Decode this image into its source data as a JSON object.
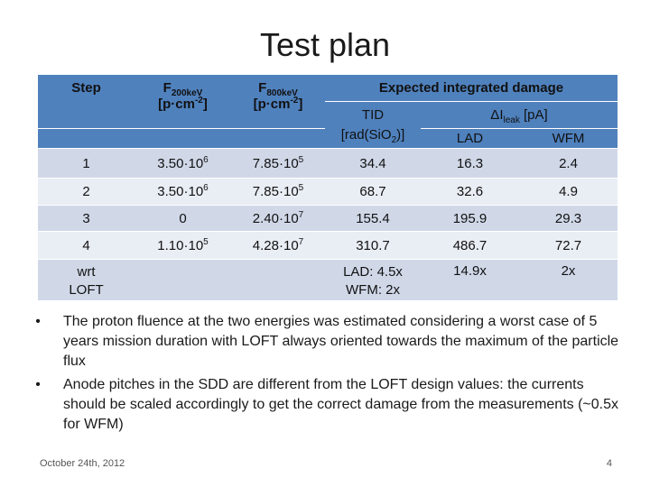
{
  "slide": {
    "title": "Test plan",
    "footer_date": "October 24th, 2012",
    "page_number": "4"
  },
  "table": {
    "headers": {
      "step": "Step",
      "f200_main": "F",
      "f200_sub": "200keV",
      "f200_unit_pre": "[p·cm",
      "f200_unit_sup": "-2",
      "f200_unit_post": "]",
      "f800_main": "F",
      "f800_sub": "800keV",
      "f800_unit_pre": "[p·cm",
      "f800_unit_sup": "-2",
      "f800_unit_post": "]",
      "expected": "Expected integrated damage",
      "tid_line1": "TID",
      "tid_line2_pre": "[rad(SiO",
      "tid_line2_sub": "2",
      "tid_line2_post": ")]",
      "ileak_pre": "ΔI",
      "ileak_sub": "leak",
      "ileak_post": " [pA]",
      "lad": "LAD",
      "wfm": "WFM"
    },
    "rows": [
      {
        "step": "1",
        "f200_mant": "3.50·10",
        "f200_exp": "6",
        "f800_mant": "7.85·10",
        "f800_exp": "5",
        "tid": "34.4",
        "lad": "16.3",
        "wfm": "2.4"
      },
      {
        "step": "2",
        "f200_mant": "3.50·10",
        "f200_exp": "6",
        "f800_mant": "7.85·10",
        "f800_exp": "5",
        "tid": "68.7",
        "lad": "32.6",
        "wfm": "4.9"
      },
      {
        "step": "3",
        "f200_mant": "0",
        "f200_exp": "",
        "f800_mant": "2.40·10",
        "f800_exp": "7",
        "tid": "155.4",
        "lad": "195.9",
        "wfm": "29.3"
      },
      {
        "step": "4",
        "f200_mant": "1.10·10",
        "f200_exp": "5",
        "f800_mant": "4.28·10",
        "f800_exp": "7",
        "tid": "310.7",
        "lad": "486.7",
        "wfm": "72.7"
      }
    ],
    "wrt_row": {
      "step_line1": "wrt",
      "step_line2": "LOFT",
      "tid_line1": "LAD: 4.5x",
      "tid_line2": "WFM: 2x",
      "lad": "14.9x",
      "wfm": "2x"
    }
  },
  "bullets": [
    "The proton fluence at the two energies was estimated considering a worst case of 5 years mission duration with LOFT always oriented towards the maximum of the particle flux",
    "Anode pitches in the SDD are different from the LOFT design values: the currents should be scaled accordingly to get the correct damage from the measurements (~0.5x for WFM)"
  ],
  "colors": {
    "header": "#4f81bd",
    "band_dark": "#d0d8e8",
    "band_light": "#e9edf4"
  }
}
